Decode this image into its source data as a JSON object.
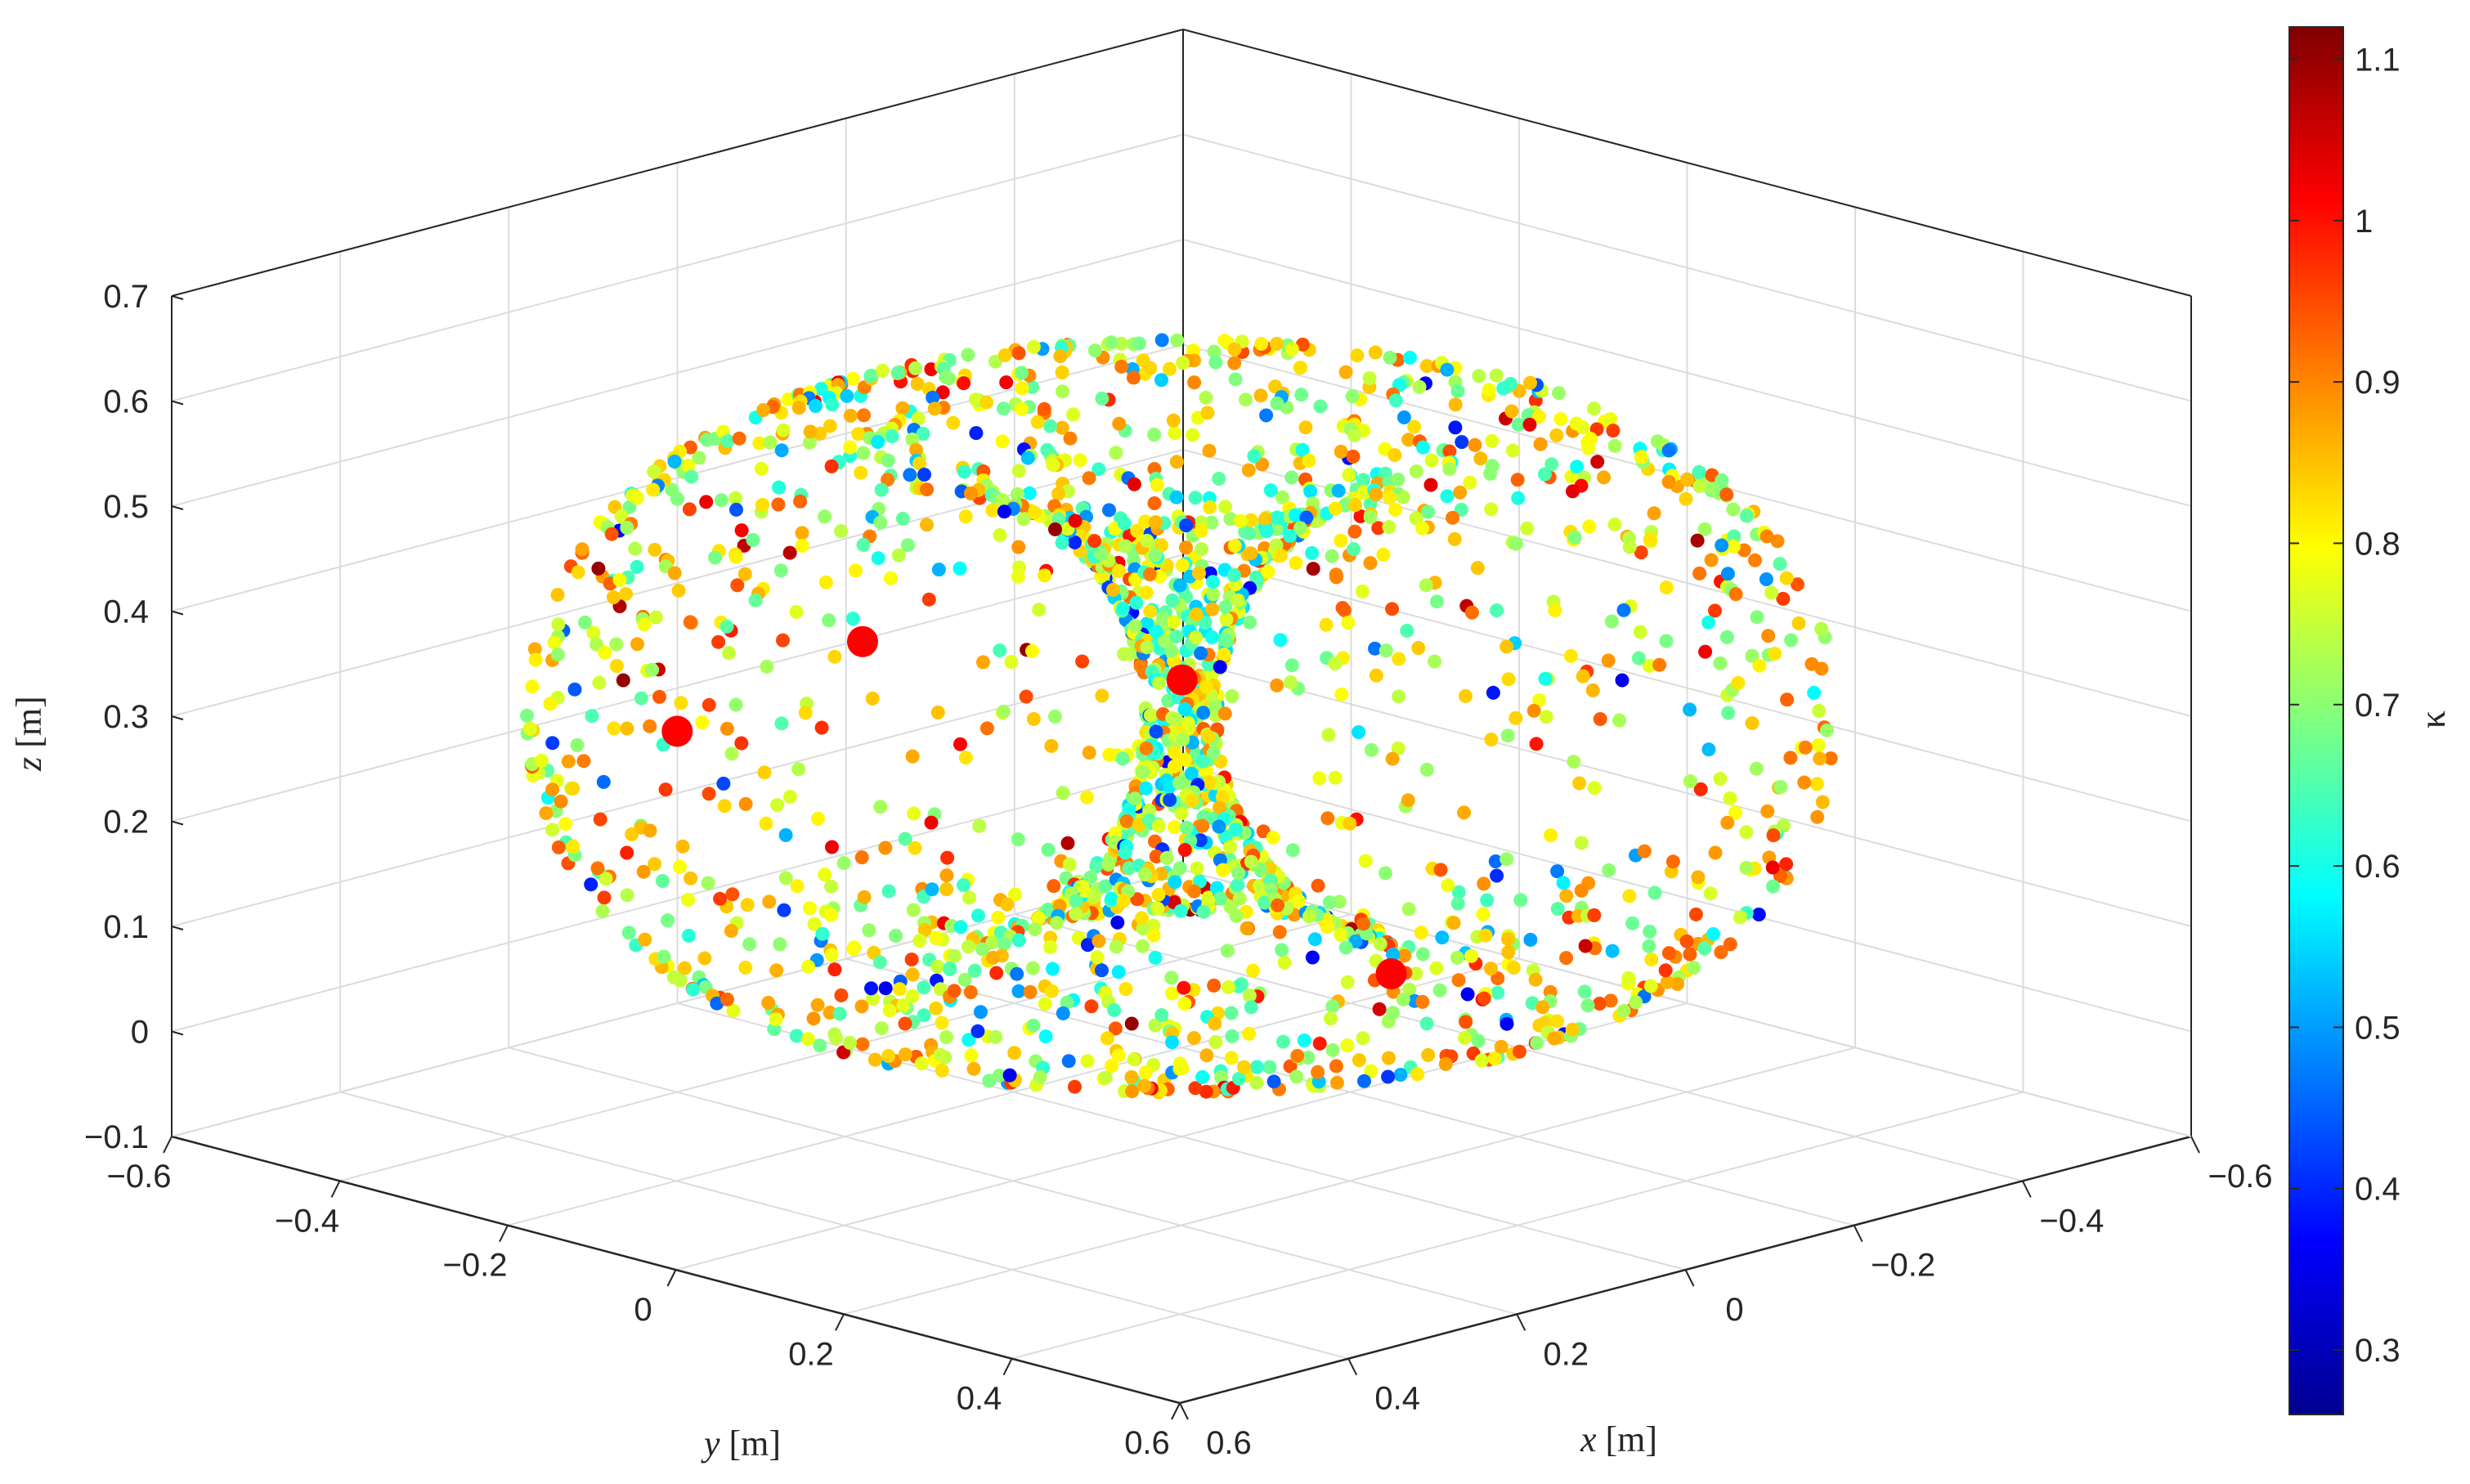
{
  "chart_data": {
    "type": "scatter",
    "dimensions": 3,
    "description": "Points on the surface of a torus-like body of revolution, colored by kappa",
    "xlabel": {
      "var": "x",
      "unit": " [m]"
    },
    "ylabel": {
      "var": "y",
      "unit": " [m]"
    },
    "zlabel": {
      "var": "z",
      "unit": " [m]"
    },
    "xlim": [
      -0.6,
      0.6
    ],
    "ylim": [
      -0.6,
      0.6
    ],
    "zlim": [
      -0.1,
      0.7
    ],
    "x_ticks": [
      "−0.6",
      "−0.4",
      "−0.2",
      "0",
      "0.2",
      "0.4",
      "0.6"
    ],
    "y_ticks": [
      "−0.6",
      "−0.4",
      "−0.2",
      "0",
      "0.2",
      "0.4",
      "0.6"
    ],
    "z_ticks": [
      "−0.1",
      "0",
      "0.1",
      "0.2",
      "0.3",
      "0.4",
      "0.5",
      "0.6",
      "0.7"
    ],
    "grid": true,
    "colorbar": {
      "label": "κ",
      "colormap": "jet",
      "range": [
        0.26,
        1.12
      ],
      "ticks": [
        "0.3",
        "0.4",
        "0.5",
        "0.6",
        "0.7",
        "0.8",
        "0.9",
        "1",
        "1.1"
      ]
    },
    "point_cloud": {
      "approx_count": 2300,
      "shape": "torus surface",
      "center": [
        0,
        0,
        0.3
      ],
      "major_radius_m": 0.29,
      "minor_radius_m": 0.26,
      "kappa_range": [
        0.28,
        1.1
      ]
    },
    "highlighted_points": [
      {
        "x": 0.05,
        "y": -0.55,
        "z": 0.18,
        "color": "#ff0000"
      },
      {
        "x": -0.12,
        "y": -0.5,
        "z": 0.24,
        "color": "#ff0000"
      },
      {
        "x": -0.2,
        "y": -0.2,
        "z": 0.25,
        "color": "#ff0000"
      },
      {
        "x": 0.1,
        "y": 0.35,
        "z": 0.15,
        "color": "#ff0000"
      }
    ]
  }
}
